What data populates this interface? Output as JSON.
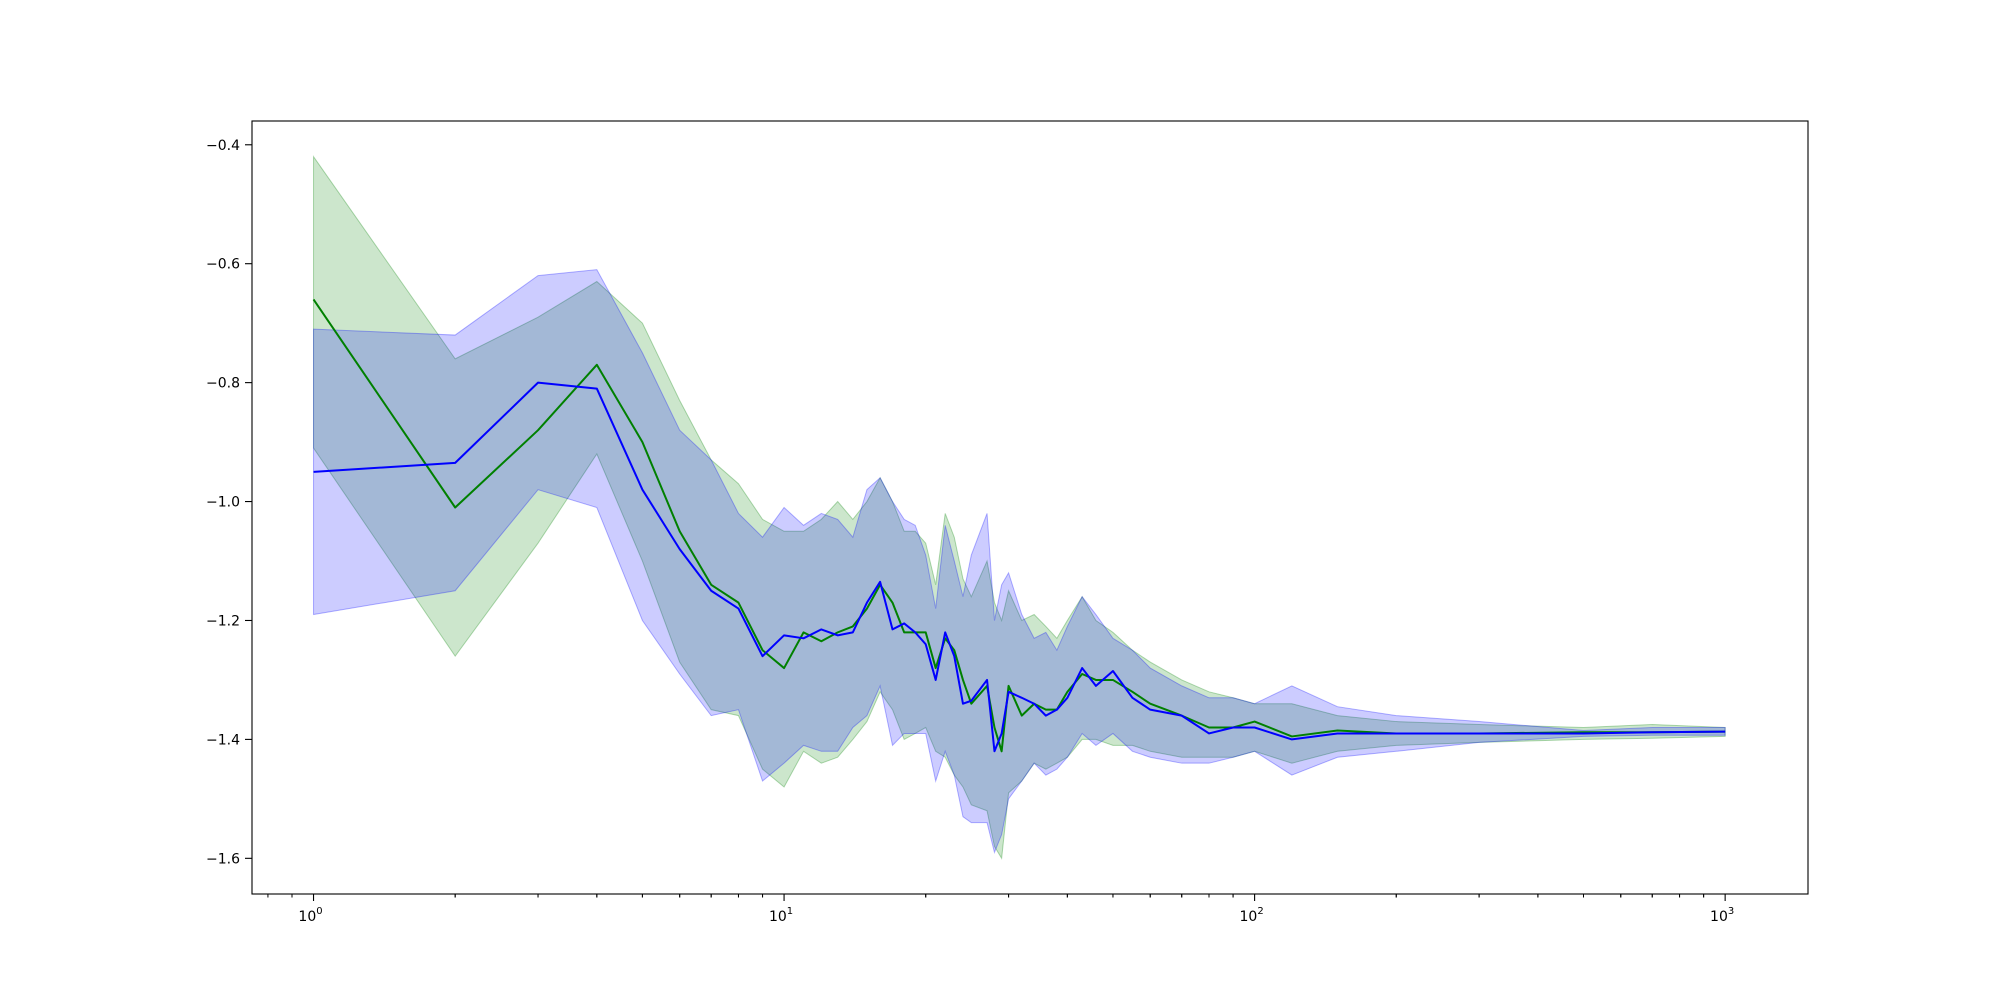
{
  "chart_data": {
    "type": "line",
    "title": "",
    "xlabel": "",
    "ylabel": "",
    "x_scale": "log",
    "xlim": [
      0.74,
      1500
    ],
    "ylim": [
      -1.66,
      -0.36
    ],
    "grid": false,
    "legend": "none",
    "x_ticks": [
      {
        "value": 1,
        "mantissa": "10",
        "exponent": "0"
      },
      {
        "value": 10,
        "mantissa": "10",
        "exponent": "1"
      },
      {
        "value": 100,
        "mantissa": "10",
        "exponent": "2"
      },
      {
        "value": 1000,
        "mantissa": "10",
        "exponent": "3"
      }
    ],
    "y_ticks": [
      {
        "value": -0.4,
        "label": "−0.4"
      },
      {
        "value": -0.6,
        "label": "−0.6"
      },
      {
        "value": -0.8,
        "label": "−0.8"
      },
      {
        "value": -1.0,
        "label": "−1.0"
      },
      {
        "value": -1.2,
        "label": "−1.2"
      },
      {
        "value": -1.4,
        "label": "−1.4"
      },
      {
        "value": -1.6,
        "label": "−1.6"
      }
    ],
    "series": [
      {
        "color": "#008000",
        "band_color": "#008000",
        "band_opacity": 0.2,
        "x": [
          1,
          2,
          3,
          4,
          5,
          6,
          7,
          8,
          9,
          10,
          11,
          12,
          13,
          14,
          15,
          16,
          17,
          18,
          19,
          20,
          21,
          22,
          23,
          24,
          25,
          27,
          28,
          29,
          30,
          32,
          34,
          36,
          38,
          40,
          43,
          46,
          50,
          55,
          60,
          70,
          80,
          90,
          100,
          120,
          150,
          200,
          300,
          500,
          700,
          1000
        ],
        "mean": [
          -0.66,
          -1.01,
          -0.88,
          -0.77,
          -0.9,
          -1.05,
          -1.14,
          -1.17,
          -1.25,
          -1.28,
          -1.22,
          -1.235,
          -1.22,
          -1.21,
          -1.18,
          -1.14,
          -1.17,
          -1.22,
          -1.22,
          -1.22,
          -1.28,
          -1.23,
          -1.25,
          -1.3,
          -1.34,
          -1.31,
          -1.38,
          -1.42,
          -1.31,
          -1.36,
          -1.34,
          -1.35,
          -1.35,
          -1.32,
          -1.29,
          -1.3,
          -1.3,
          -1.32,
          -1.34,
          -1.36,
          -1.38,
          -1.38,
          -1.37,
          -1.395,
          -1.385,
          -1.39,
          -1.39,
          -1.388,
          -1.388,
          -1.387
        ],
        "upper": [
          -0.42,
          -0.76,
          -0.69,
          -0.63,
          -0.7,
          -0.83,
          -0.93,
          -0.97,
          -1.03,
          -1.05,
          -1.05,
          -1.03,
          -1.0,
          -1.03,
          -1.0,
          -0.96,
          -1.0,
          -1.05,
          -1.05,
          -1.07,
          -1.14,
          -1.02,
          -1.06,
          -1.13,
          -1.16,
          -1.1,
          -1.17,
          -1.2,
          -1.15,
          -1.2,
          -1.19,
          -1.21,
          -1.23,
          -1.2,
          -1.16,
          -1.2,
          -1.22,
          -1.25,
          -1.27,
          -1.3,
          -1.32,
          -1.33,
          -1.34,
          -1.34,
          -1.36,
          -1.37,
          -1.375,
          -1.38,
          -1.375,
          -1.38
        ],
        "lower": [
          -0.91,
          -1.26,
          -1.07,
          -0.92,
          -1.1,
          -1.27,
          -1.35,
          -1.36,
          -1.45,
          -1.48,
          -1.42,
          -1.44,
          -1.43,
          -1.4,
          -1.37,
          -1.32,
          -1.35,
          -1.4,
          -1.39,
          -1.38,
          -1.42,
          -1.43,
          -1.46,
          -1.48,
          -1.51,
          -1.52,
          -1.58,
          -1.6,
          -1.49,
          -1.47,
          -1.44,
          -1.45,
          -1.44,
          -1.43,
          -1.4,
          -1.4,
          -1.41,
          -1.41,
          -1.42,
          -1.43,
          -1.43,
          -1.43,
          -1.42,
          -1.44,
          -1.42,
          -1.41,
          -1.405,
          -1.4,
          -1.398,
          -1.395
        ]
      },
      {
        "color": "#0000ff",
        "band_color": "#0000ff",
        "band_opacity": 0.2,
        "x": [
          1,
          2,
          3,
          4,
          5,
          6,
          7,
          8,
          9,
          10,
          11,
          12,
          13,
          14,
          15,
          16,
          17,
          18,
          19,
          20,
          21,
          22,
          23,
          24,
          25,
          27,
          28,
          29,
          30,
          32,
          34,
          36,
          38,
          40,
          43,
          46,
          50,
          55,
          60,
          70,
          80,
          90,
          100,
          120,
          150,
          200,
          300,
          500,
          700,
          1000
        ],
        "mean": [
          -0.95,
          -0.935,
          -0.8,
          -0.81,
          -0.98,
          -1.08,
          -1.15,
          -1.18,
          -1.26,
          -1.225,
          -1.23,
          -1.215,
          -1.225,
          -1.22,
          -1.17,
          -1.135,
          -1.215,
          -1.205,
          -1.22,
          -1.24,
          -1.3,
          -1.22,
          -1.26,
          -1.34,
          -1.335,
          -1.3,
          -1.42,
          -1.39,
          -1.32,
          -1.33,
          -1.34,
          -1.36,
          -1.35,
          -1.33,
          -1.28,
          -1.31,
          -1.285,
          -1.33,
          -1.35,
          -1.36,
          -1.39,
          -1.38,
          -1.38,
          -1.4,
          -1.39,
          -1.39,
          -1.39,
          -1.39,
          -1.388,
          -1.387
        ],
        "upper": [
          -0.71,
          -0.72,
          -0.62,
          -0.61,
          -0.75,
          -0.88,
          -0.93,
          -1.02,
          -1.06,
          -1.01,
          -1.04,
          -1.02,
          -1.03,
          -1.06,
          -0.98,
          -0.96,
          -1.0,
          -1.03,
          -1.04,
          -1.09,
          -1.18,
          -1.04,
          -1.1,
          -1.16,
          -1.09,
          -1.02,
          -1.2,
          -1.14,
          -1.12,
          -1.19,
          -1.23,
          -1.22,
          -1.25,
          -1.21,
          -1.16,
          -1.19,
          -1.23,
          -1.25,
          -1.28,
          -1.31,
          -1.33,
          -1.33,
          -1.34,
          -1.31,
          -1.345,
          -1.36,
          -1.37,
          -1.385,
          -1.38,
          -1.38
        ],
        "lower": [
          -1.19,
          -1.15,
          -0.98,
          -1.01,
          -1.2,
          -1.29,
          -1.36,
          -1.35,
          -1.47,
          -1.44,
          -1.41,
          -1.42,
          -1.42,
          -1.38,
          -1.36,
          -1.31,
          -1.41,
          -1.39,
          -1.39,
          -1.39,
          -1.47,
          -1.42,
          -1.46,
          -1.53,
          -1.54,
          -1.54,
          -1.59,
          -1.56,
          -1.5,
          -1.47,
          -1.44,
          -1.46,
          -1.45,
          -1.43,
          -1.39,
          -1.41,
          -1.39,
          -1.42,
          -1.43,
          -1.44,
          -1.44,
          -1.43,
          -1.42,
          -1.46,
          -1.43,
          -1.42,
          -1.405,
          -1.395,
          -1.393,
          -1.393
        ]
      }
    ]
  }
}
